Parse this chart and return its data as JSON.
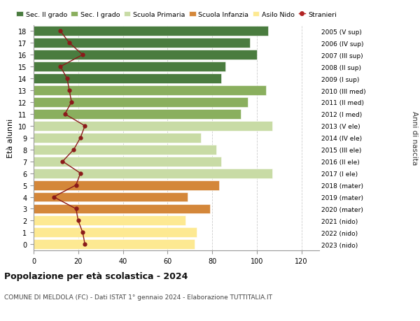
{
  "ages": [
    0,
    1,
    2,
    3,
    4,
    5,
    6,
    7,
    8,
    9,
    10,
    11,
    12,
    13,
    14,
    15,
    16,
    17,
    18
  ],
  "bar_values": [
    72,
    73,
    68,
    79,
    69,
    83,
    107,
    84,
    82,
    75,
    107,
    93,
    96,
    104,
    84,
    86,
    100,
    97,
    105
  ],
  "stranieri": [
    23,
    22,
    20,
    19,
    9,
    19,
    21,
    13,
    18,
    21,
    23,
    14,
    17,
    16,
    15,
    12,
    22,
    16,
    12
  ],
  "bar_colors": [
    "#fde992",
    "#fde992",
    "#fde992",
    "#d4873a",
    "#d4873a",
    "#d4873a",
    "#c8dba5",
    "#c8dba5",
    "#c8dba5",
    "#c8dba5",
    "#c8dba5",
    "#8aaf5e",
    "#8aaf5e",
    "#8aaf5e",
    "#4a7c3f",
    "#4a7c3f",
    "#4a7c3f",
    "#4a7c3f",
    "#4a7c3f"
  ],
  "right_labels": [
    "2023 (nido)",
    "2022 (nido)",
    "2021 (nido)",
    "2020 (mater)",
    "2019 (mater)",
    "2018 (mater)",
    "2017 (I ele)",
    "2016 (II ele)",
    "2015 (III ele)",
    "2014 (IV ele)",
    "2013 (V ele)",
    "2012 (I med)",
    "2011 (II med)",
    "2010 (III med)",
    "2009 (I sup)",
    "2008 (II sup)",
    "2007 (III sup)",
    "2006 (IV sup)",
    "2005 (V sup)"
  ],
  "legend_labels": [
    "Sec. II grado",
    "Sec. I grado",
    "Scuola Primaria",
    "Scuola Infanzia",
    "Asilo Nido",
    "Stranieri"
  ],
  "legend_colors": [
    "#4a7c3f",
    "#8aaf5e",
    "#c8dba5",
    "#d4873a",
    "#fde992",
    "#b22222"
  ],
  "xlabel_vals": [
    0,
    20,
    40,
    60,
    80,
    100,
    120
  ],
  "xlim": [
    0,
    128
  ],
  "ylabel": "Età alunni",
  "right_ylabel": "Anni di nascita",
  "title": "Popolazione per età scolastica - 2024",
  "subtitle": "COMUNE DI MELDOLA (FC) - Dati ISTAT 1° gennaio 2024 - Elaborazione TUTTITALIA.IT",
  "stranieri_color": "#8b1a1a",
  "stranieri_marker": "o",
  "stranieri_markersize": 3.5,
  "stranieri_linewidth": 1.0,
  "bar_height": 0.82,
  "background_color": "#ffffff",
  "grid_color": "#cccccc"
}
